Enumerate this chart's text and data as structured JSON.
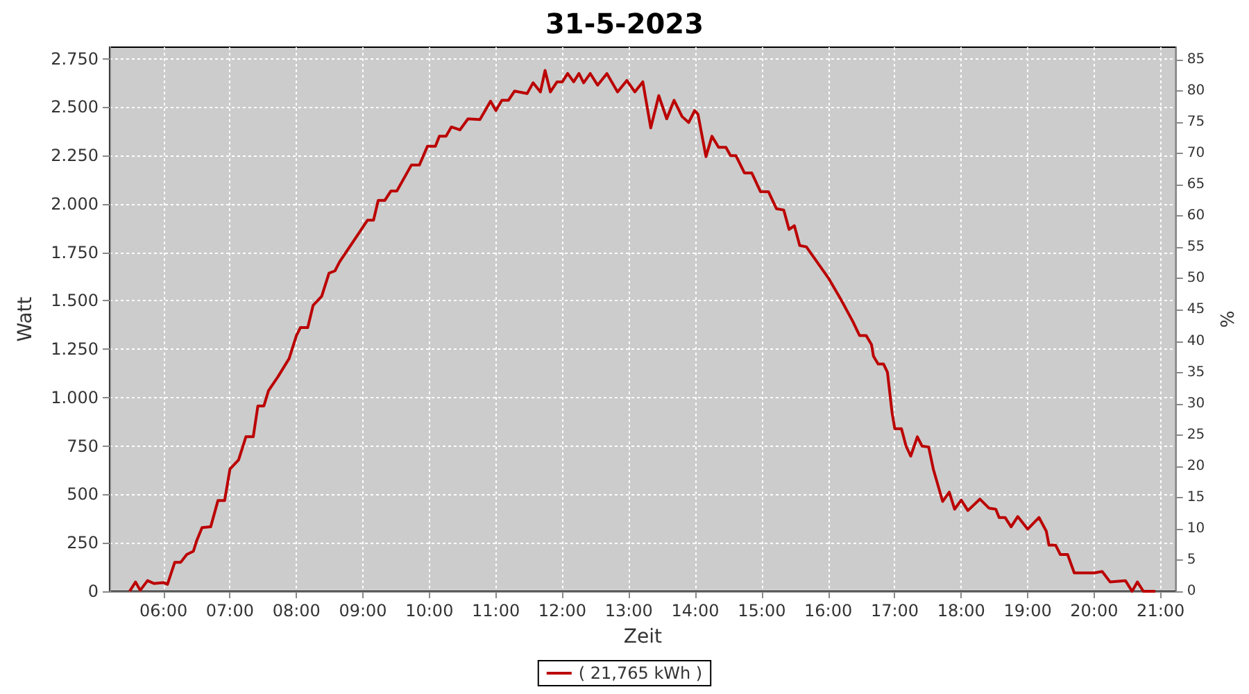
{
  "chart_data": {
    "type": "line",
    "title": "31-5-2023",
    "xlabel": "Zeit",
    "ylabel": "Watt",
    "y2label": "%",
    "xlim": [
      5.19,
      21.23
    ],
    "xticks": [
      {
        "value": 6,
        "label": "06:00"
      },
      {
        "value": 7,
        "label": "07:00"
      },
      {
        "value": 8,
        "label": "08:00"
      },
      {
        "value": 9,
        "label": "09:00"
      },
      {
        "value": 10,
        "label": "10:00"
      },
      {
        "value": 11,
        "label": "11:00"
      },
      {
        "value": 12,
        "label": "12:00"
      },
      {
        "value": 13,
        "label": "13:00"
      },
      {
        "value": 14,
        "label": "14:00"
      },
      {
        "value": 15,
        "label": "15:00"
      },
      {
        "value": 16,
        "label": "16:00"
      },
      {
        "value": 17,
        "label": "17:00"
      },
      {
        "value": 18,
        "label": "18:00"
      },
      {
        "value": 19,
        "label": "19:00"
      },
      {
        "value": 20,
        "label": "20:00"
      },
      {
        "value": 21,
        "label": "21:00"
      }
    ],
    "ylim": [
      0,
      2810
    ],
    "yticks": [
      0,
      250,
      500,
      750,
      {
        "value": 1000,
        "label": "1.000"
      },
      {
        "value": 1250,
        "label": "1.250"
      },
      {
        "value": 1500,
        "label": "1.500"
      },
      {
        "value": 1750,
        "label": "1.750"
      },
      {
        "value": 2000,
        "label": "2.000"
      },
      {
        "value": 2250,
        "label": "2.250"
      },
      {
        "value": 2500,
        "label": "2.500"
      },
      {
        "value": 2750,
        "label": "2.750"
      }
    ],
    "y2lim": [
      0,
      87
    ],
    "y2ticks": [
      0,
      5,
      10,
      15,
      20,
      25,
      30,
      35,
      40,
      45,
      50,
      55,
      60,
      65,
      70,
      75,
      80,
      85
    ],
    "grid": true,
    "legend": "bottom",
    "marker": "none",
    "line_style": "solid",
    "series": [
      {
        "name": "( 21,765 kWh )",
        "color": "#bb0000",
        "x": [
          5.49,
          5.58,
          5.65,
          5.76,
          5.86,
          6.0,
          6.06,
          6.17,
          6.26,
          6.35,
          6.45,
          6.5,
          6.58,
          6.71,
          6.82,
          6.92,
          7.0,
          7.13,
          7.24,
          7.35,
          7.42,
          7.51,
          7.58,
          7.72,
          7.89,
          8.0,
          8.06,
          8.17,
          8.25,
          8.38,
          8.49,
          8.58,
          8.65,
          9.0,
          9.07,
          9.16,
          9.23,
          9.33,
          9.42,
          9.51,
          9.73,
          9.85,
          9.97,
          10.09,
          10.15,
          10.25,
          10.33,
          10.46,
          10.58,
          10.76,
          10.92,
          11.0,
          11.09,
          11.19,
          11.28,
          11.47,
          11.56,
          11.67,
          11.74,
          11.82,
          11.92,
          12.0,
          12.08,
          12.17,
          12.25,
          12.32,
          12.42,
          12.53,
          12.67,
          12.83,
          12.97,
          13.09,
          13.21,
          13.33,
          13.45,
          13.57,
          13.68,
          13.8,
          13.9,
          13.99,
          14.04,
          14.16,
          14.25,
          14.35,
          14.46,
          14.53,
          14.61,
          14.74,
          14.85,
          14.98,
          15.1,
          15.22,
          15.33,
          15.41,
          15.49,
          15.57,
          15.67,
          16.0,
          16.19,
          16.37,
          16.47,
          16.57,
          16.65,
          16.68,
          16.75,
          16.83,
          16.89,
          16.96,
          17.0,
          17.1,
          17.17,
          17.24,
          17.34,
          17.41,
          17.51,
          17.58,
          17.72,
          17.82,
          17.9,
          18.0,
          18.1,
          18.28,
          18.42,
          18.52,
          18.57,
          18.66,
          18.75,
          18.85,
          19.0,
          19.17,
          19.28,
          19.32,
          19.42,
          19.49,
          19.6,
          19.7,
          19.87,
          20.0,
          20.12,
          20.24,
          20.47,
          20.57,
          20.65,
          20.74,
          20.92
        ],
        "values": [
          0,
          48,
          5,
          55,
          40,
          45,
          36,
          150,
          150,
          190,
          207,
          262,
          329,
          333,
          469,
          469,
          631,
          679,
          798,
          798,
          957,
          957,
          1036,
          1107,
          1202,
          1321,
          1362,
          1362,
          1476,
          1524,
          1643,
          1655,
          1702,
          1881,
          1917,
          1917,
          2019,
          2019,
          2067,
          2067,
          2202,
          2202,
          2298,
          2298,
          2350,
          2350,
          2398,
          2383,
          2440,
          2436,
          2531,
          2483,
          2536,
          2536,
          2583,
          2571,
          2626,
          2579,
          2690,
          2579,
          2631,
          2631,
          2674,
          2631,
          2674,
          2626,
          2674,
          2614,
          2674,
          2579,
          2638,
          2579,
          2631,
          2393,
          2560,
          2440,
          2536,
          2452,
          2421,
          2483,
          2464,
          2245,
          2350,
          2293,
          2293,
          2250,
          2250,
          2160,
          2160,
          2064,
          2064,
          1976,
          1969,
          1869,
          1888,
          1786,
          1779,
          1619,
          1507,
          1393,
          1321,
          1321,
          1274,
          1214,
          1174,
          1174,
          1131,
          921,
          840,
          840,
          750,
          698,
          798,
          750,
          745,
          631,
          464,
          512,
          424,
          471,
          417,
          476,
          429,
          424,
          381,
          381,
          333,
          386,
          321,
          381,
          310,
          238,
          238,
          190,
          190,
          95,
          95,
          95,
          102,
          48,
          55,
          0,
          48,
          0,
          0
        ]
      }
    ]
  }
}
